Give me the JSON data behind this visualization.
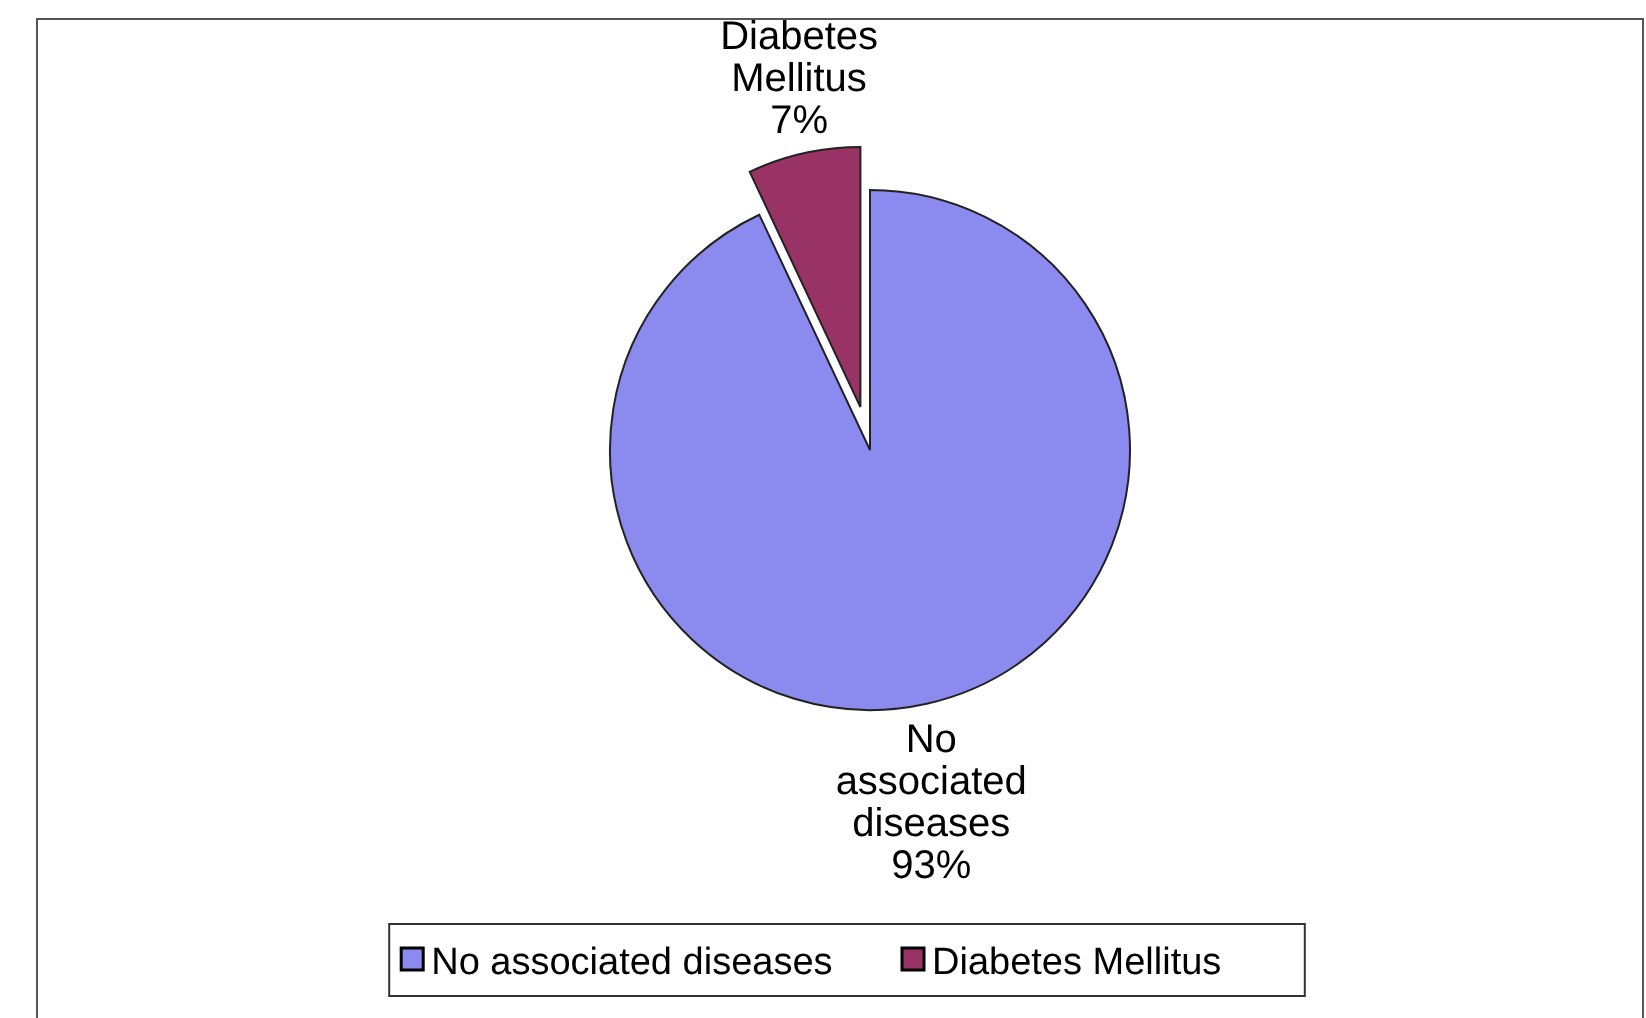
{
  "chart_data": {
    "type": "pie",
    "categories": [
      "No associated diseases",
      "Diabetes Mellitus"
    ],
    "values": [
      93,
      7
    ],
    "value_labels": [
      "93%",
      "7%"
    ],
    "colors": [
      "#8b8bef",
      "#993366"
    ],
    "legend": "bottom"
  }
}
